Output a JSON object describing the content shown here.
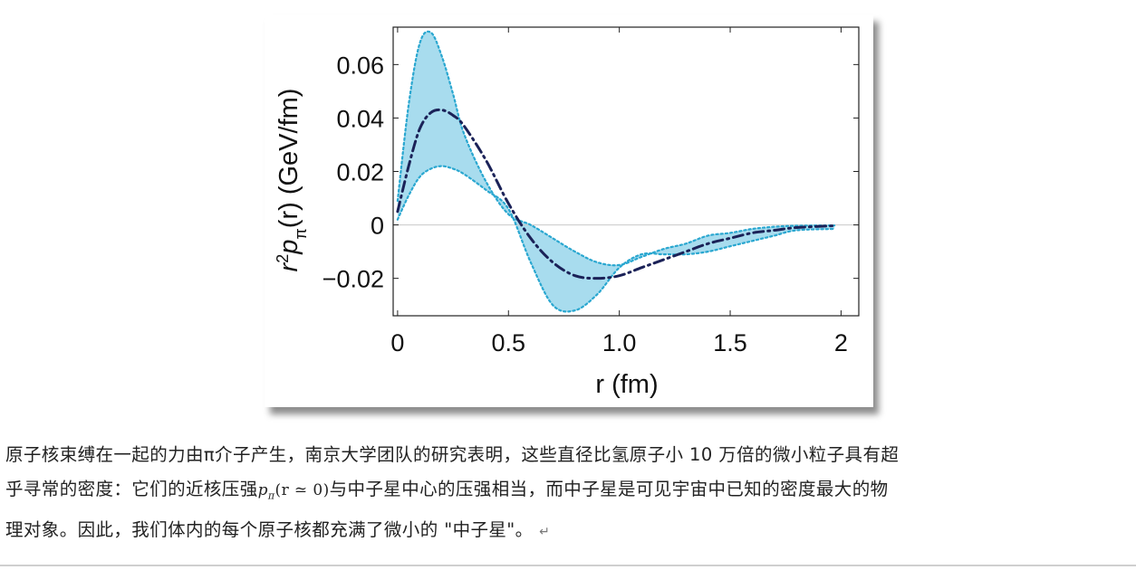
{
  "chart_data": {
    "type": "line",
    "xlabel": "r (fm)",
    "ylabel_base": "r",
    "ylabel_sup": "2",
    "ylabel_p": "p",
    "ylabel_sub": "π",
    "ylabel_tail": "(r) (GeV/fm)",
    "xlim": [
      -0.02,
      2.08
    ],
    "ylim": [
      -0.034,
      0.074
    ],
    "x_ticks": [
      0,
      0.5,
      1.0,
      1.5,
      2
    ],
    "x_tick_labels": [
      "0",
      "0.5",
      "1.0",
      "1.5",
      "2"
    ],
    "y_ticks": [
      -0.02,
      0,
      0.02,
      0.04,
      0.06
    ],
    "y_tick_labels": [
      "−0.02",
      "0",
      "0.02",
      "0.04",
      "0.06"
    ],
    "grid": false,
    "zero_line": true,
    "colors": {
      "band_fill": "#a8dcee",
      "band_edge": "#2aa7d0",
      "central": "#1b2258",
      "zero": "#c8c8c8"
    },
    "series": [
      {
        "role": "central",
        "style": "dash-dot",
        "x": [
          0,
          0.05,
          0.1,
          0.15,
          0.2,
          0.25,
          0.3,
          0.4,
          0.5,
          0.6,
          0.7,
          0.8,
          0.9,
          1.0,
          1.1,
          1.2,
          1.3,
          1.4,
          1.5,
          1.6,
          1.7,
          1.8,
          1.97
        ],
        "y": [
          0.005,
          0.022,
          0.036,
          0.042,
          0.043,
          0.041,
          0.037,
          0.024,
          0.008,
          -0.005,
          -0.014,
          -0.019,
          -0.02,
          -0.019,
          -0.016,
          -0.013,
          -0.01,
          -0.007,
          -0.005,
          -0.003,
          -0.002,
          -0.001,
          -0.0003
        ]
      },
      {
        "role": "band-upper",
        "style": "dotted",
        "x": [
          0,
          0.05,
          0.1,
          0.15,
          0.2,
          0.25,
          0.3,
          0.4,
          0.5,
          0.6,
          0.7,
          0.8,
          0.9,
          1.0,
          1.1,
          1.2,
          1.3,
          1.4,
          1.5,
          1.6,
          1.7,
          1.8,
          1.97
        ],
        "y": [
          0.009,
          0.045,
          0.068,
          0.072,
          0.063,
          0.049,
          0.034,
          0.016,
          0.004,
          0.0,
          -0.005,
          -0.01,
          -0.014,
          -0.015,
          -0.012,
          -0.009,
          -0.007,
          -0.004,
          -0.003,
          -0.0015,
          -0.0007,
          -0.0003,
          -0.0002
        ]
      },
      {
        "role": "band-lower",
        "style": "dotted",
        "x": [
          0,
          0.05,
          0.1,
          0.15,
          0.2,
          0.25,
          0.3,
          0.4,
          0.5,
          0.6,
          0.7,
          0.8,
          0.9,
          1.0,
          1.1,
          1.2,
          1.3,
          1.4,
          1.5,
          1.6,
          1.7,
          1.8,
          1.97
        ],
        "y": [
          0.002,
          0.011,
          0.018,
          0.021,
          0.022,
          0.021,
          0.019,
          0.013,
          0.006,
          -0.014,
          -0.03,
          -0.032,
          -0.026,
          -0.016,
          -0.011,
          -0.011,
          -0.011,
          -0.01,
          -0.008,
          -0.006,
          -0.004,
          -0.002,
          -0.0015
        ]
      }
    ]
  },
  "caption": {
    "line1": "原子核束缚在一起的力由π介子产生，南京大学团队的研究表明，这些直径比氢原子小 10 万倍的微小粒子具有超",
    "line2_a": "乎寻常的密度：它们的近核压强",
    "line2_math_p": "p",
    "line2_math_sub": "π",
    "line2_math_arg": "(r ≃ 0)",
    "line2_b": "与中子星中心的压强相当，而中子星是可见宇宙中已知的密度最大的物",
    "line3": "理对象。因此，我们体内的每个原子核都充满了微小的 \"中子星\"。",
    "return_mark": "↵"
  }
}
